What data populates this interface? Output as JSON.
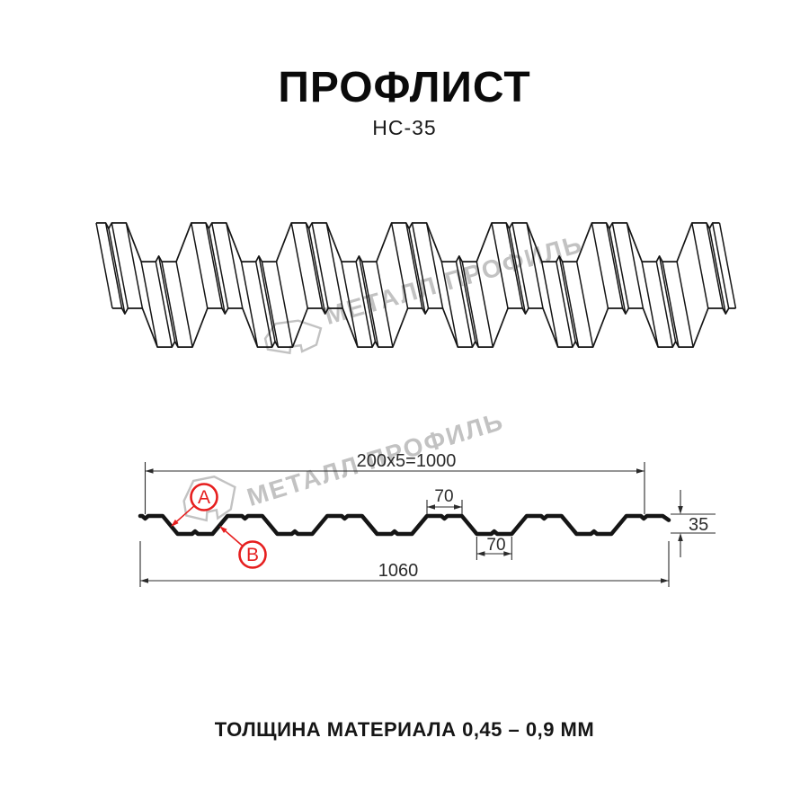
{
  "header": {
    "title": "ПРОФЛИСТ",
    "subtitle": "НС-35"
  },
  "watermark": {
    "text": "МЕТАЛЛ ПРОФИЛЬ"
  },
  "footer": {
    "note": "ТОЛЩИНА МАТЕРИАЛА 0,45 – 0,9 ММ"
  },
  "drawing": {
    "dims": {
      "top": "200x5=1000",
      "crest": "70",
      "trough": "70",
      "height": "35",
      "overall": "1060"
    },
    "point_labels": {
      "a": "А",
      "b": "В"
    },
    "spec": {
      "period_mm": 200,
      "periods": 5,
      "cover_width_mm": 1000,
      "overall_width_mm": 1060,
      "height_mm": 35,
      "flange_top_mm": 70,
      "flange_bottom_mm": 70,
      "thickness_range_mm": "0,45 – 0,9"
    }
  },
  "colors": {
    "line": "#151515",
    "dim": "#2b2b2b",
    "red": "#e61e1e",
    "watermark": "#c2c2c2"
  }
}
